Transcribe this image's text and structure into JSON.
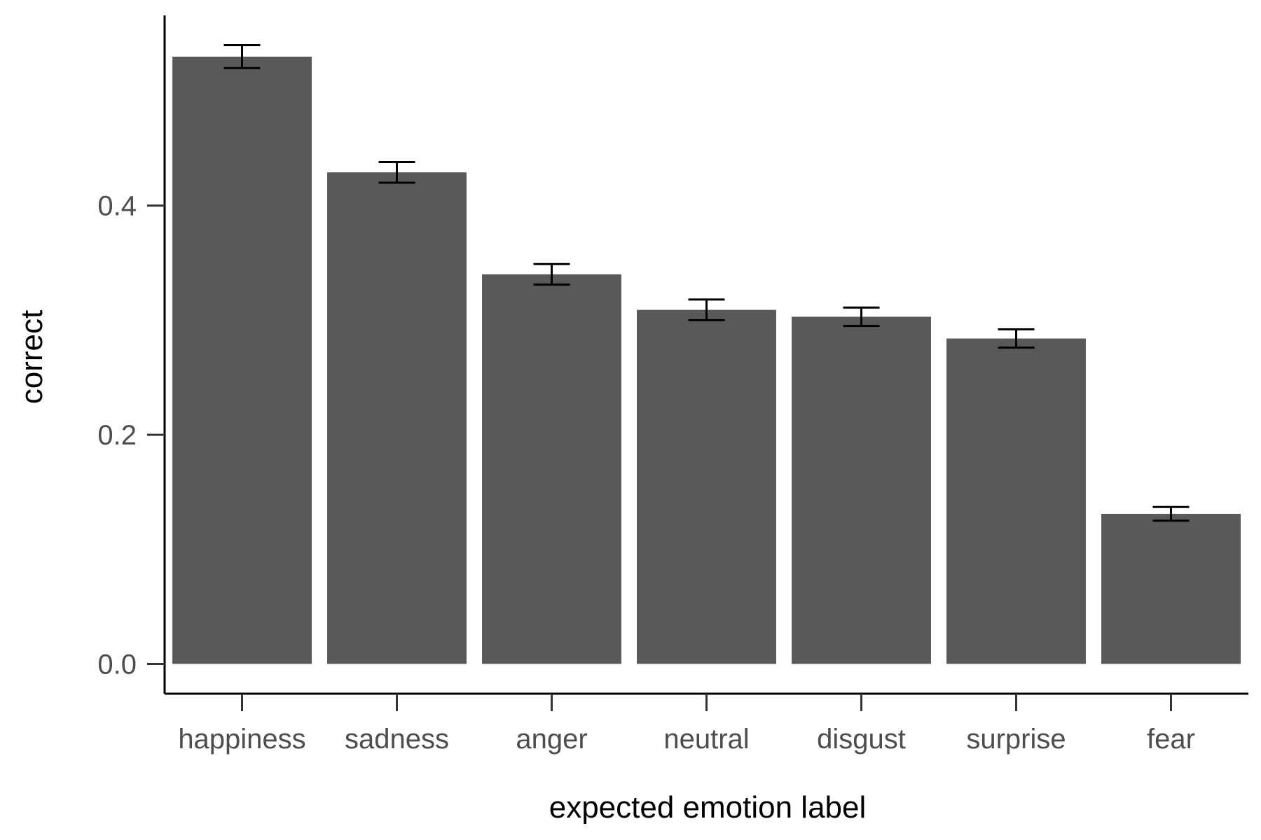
{
  "chart_data": {
    "type": "bar",
    "title": "",
    "xlabel": "expected emotion label",
    "ylabel": "correct",
    "categories": [
      "happiness",
      "sadness",
      "anger",
      "neutral",
      "disgust",
      "surprise",
      "fear"
    ],
    "values": [
      0.53,
      0.429,
      0.34,
      0.309,
      0.303,
      0.284,
      0.131
    ],
    "error_bars": [
      {
        "low": 0.52,
        "high": 0.54
      },
      {
        "low": 0.42,
        "high": 0.438
      },
      {
        "low": 0.331,
        "high": 0.349
      },
      {
        "low": 0.3,
        "high": 0.318
      },
      {
        "low": 0.295,
        "high": 0.311
      },
      {
        "low": 0.276,
        "high": 0.292
      },
      {
        "low": 0.125,
        "high": 0.137
      }
    ],
    "ylim": [
      -0.026,
      0.566
    ],
    "yticks": [
      0.0,
      0.2,
      0.4
    ],
    "ytick_labels": [
      "0.0",
      "0.2",
      "0.4"
    ],
    "bar_color": "#595959",
    "errorbar_color": "#000000",
    "axis_color": "#000000",
    "tick_color": "#333333",
    "grid": false,
    "legend": "none"
  }
}
